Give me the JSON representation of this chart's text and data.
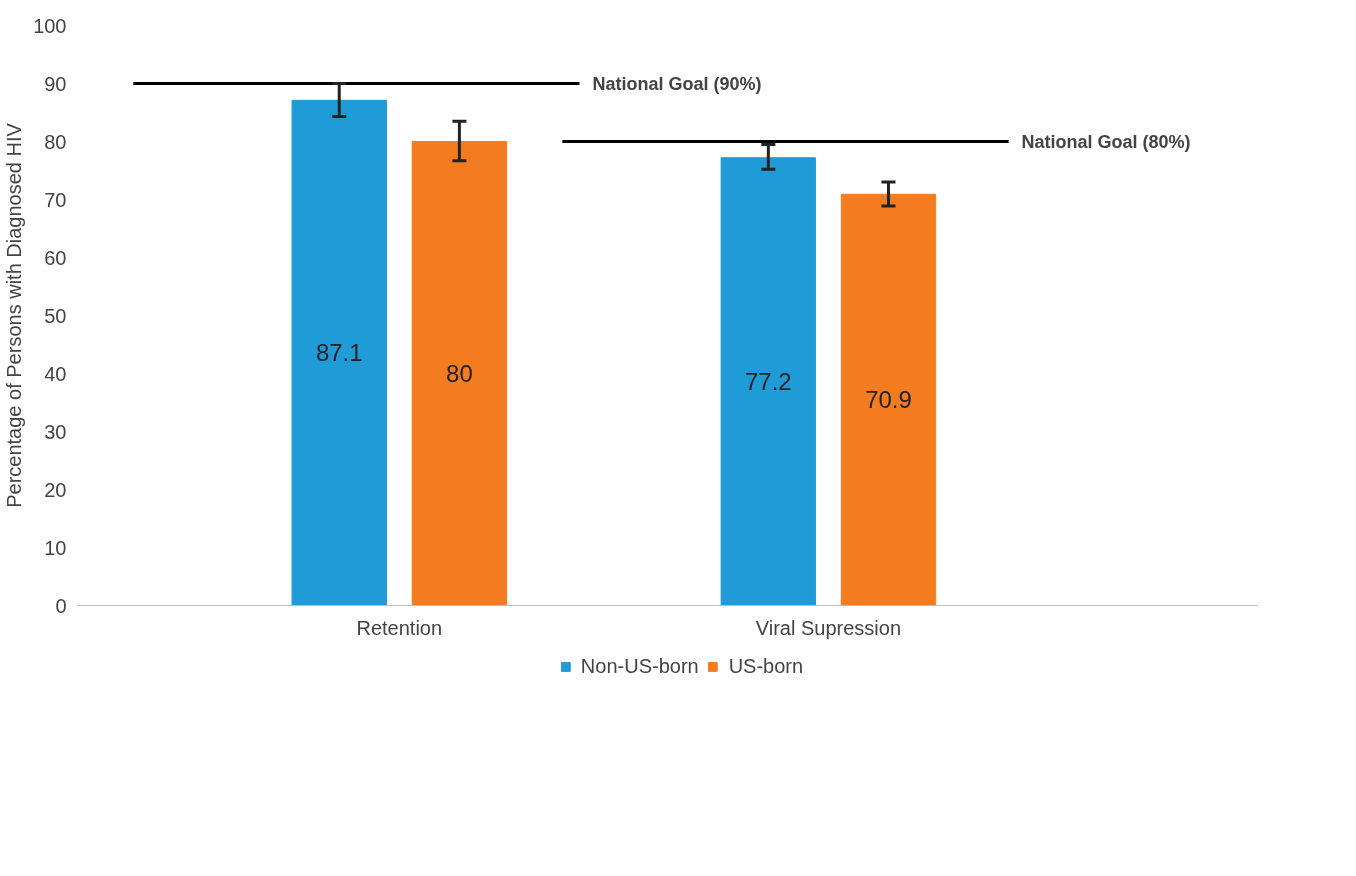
{
  "chart_data": {
    "type": "bar",
    "ylabel": "Percentage of Persons with Diagnosed HIV",
    "categories": [
      "Retention",
      "Viral Supression"
    ],
    "series": [
      {
        "name": "Non-US-born",
        "color": "#1f9bd7",
        "values": [
          87.1,
          77.2
        ],
        "errors": [
          [
            84.3,
            90.0
          ],
          [
            75.2,
            79.5
          ]
        ]
      },
      {
        "name": "US-born",
        "color": "#f47c20",
        "values": [
          80,
          70.9
        ],
        "errors": [
          [
            76.7,
            83.5
          ],
          [
            68.9,
            73.0
          ]
        ]
      }
    ],
    "ylim": [
      0,
      100
    ],
    "yticks": [
      0,
      10,
      20,
      30,
      40,
      50,
      60,
      70,
      80,
      90,
      100
    ],
    "ref_lines": [
      {
        "axis": "y",
        "value": 90,
        "label": "National Goal (90%)",
        "color": "#000000"
      },
      {
        "axis": "y",
        "value": 80,
        "label": "National Goal (80%)",
        "color": "#000000"
      }
    ],
    "data_labels": true,
    "grid": false,
    "legend": "bottom"
  }
}
